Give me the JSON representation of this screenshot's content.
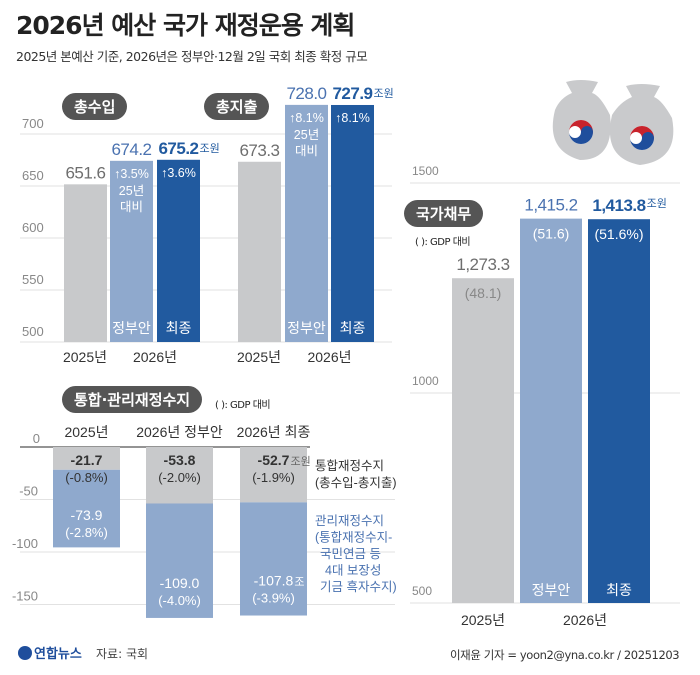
{
  "title": "2026년 예산 국가 재정운용 계획",
  "subtitle": "2025년 본예산 기준, 2026년은 정부안·12월 2일 국회 최종 확정 규모",
  "colors": {
    "y2025": "#c8c9cb",
    "proposal": "#8fa9cd",
    "final": "#215a9f",
    "gray_text": "#6e6e6e",
    "blue_text": "#4a72b0"
  },
  "unit": "조원",
  "unit_short": "조",
  "gdp_note": "( ): GDP 대비",
  "source": "자료: 국회",
  "logo": "연합뉴스",
  "credit": "이재윤 기자 = yoon2@yna.co.kr / 20251203",
  "chart_data": [
    {
      "type": "bar",
      "title": "총수입",
      "categories": [
        "2025년",
        "2026년 정부안",
        "2026년 최종"
      ],
      "values": [
        651.6,
        674.2,
        675.2
      ],
      "value_labels": [
        "651.6",
        "674.2",
        "675.2"
      ],
      "bar_labels": [
        "",
        "정부안",
        "최종"
      ],
      "growth": [
        "",
        "↑3.5%",
        "↑3.6%"
      ],
      "growth_note": [
        "25년",
        "대비"
      ],
      "x_groups": [
        "2025년",
        "2026년"
      ],
      "yticks": [
        500,
        550,
        600,
        650,
        700
      ],
      "ylim": [
        500,
        700
      ],
      "grid": true
    },
    {
      "type": "bar",
      "title": "총지출",
      "categories": [
        "2025년",
        "2026년 정부안",
        "2026년 최종"
      ],
      "values": [
        673.3,
        728.0,
        727.9
      ],
      "value_labels": [
        "673.3",
        "728.0",
        "727.9"
      ],
      "bar_labels": [
        "",
        "정부안",
        "최종"
      ],
      "growth": [
        "",
        "↑8.1%",
        "↑8.1%"
      ],
      "growth_note": [
        "25년",
        "대비"
      ],
      "x_groups": [
        "2025년",
        "2026년"
      ],
      "ylim": [
        500,
        700
      ],
      "grid": true
    },
    {
      "type": "bar",
      "title": "통합·관리재정수지",
      "stacked": true,
      "categories": [
        "2025년",
        "2026년 정부안",
        "2026년 최종"
      ],
      "series": [
        {
          "name": "통합재정수지 (총수입-총지출)",
          "values": [
            -21.7,
            -53.8,
            -52.7
          ],
          "labels": [
            "-21.7",
            "-53.8",
            "-52.7"
          ],
          "gdp": [
            "(-0.8%)",
            "(-2.0%)",
            "(-1.9%)"
          ]
        },
        {
          "name": "관리재정수지 (통합재정수지- 국민연금 등 4대 보장성 기금 흑자수지)",
          "values": [
            -73.9,
            -109.0,
            -107.8
          ],
          "labels": [
            "-73.9",
            "-109.0",
            "-107.8"
          ],
          "gdp": [
            "(-2.8%)",
            "(-4.0%)",
            "(-3.9%)"
          ]
        }
      ],
      "legend": [
        [
          "통합재정수지",
          "(총수입-총지출)"
        ],
        [
          "관리재정수지",
          "(통합재정수지-",
          "국민연금 등",
          "4대 보장성",
          "기금 흑자수지)"
        ]
      ],
      "yticks": [
        0,
        -50,
        -100,
        -150
      ],
      "grid": true
    },
    {
      "type": "bar",
      "title": "국가채무",
      "categories": [
        "2025년",
        "2026년 정부안",
        "2026년 최종"
      ],
      "values": [
        1273.3,
        1415.2,
        1413.8
      ],
      "value_labels": [
        "1,273.3",
        "1,415.2",
        "1,413.8"
      ],
      "gdp": [
        "(48.1)",
        "(51.6)",
        "(51.6%)"
      ],
      "bar_labels": [
        "",
        "정부안",
        "최종"
      ],
      "x_groups": [
        "2025년",
        "2026년"
      ],
      "yticks": [
        500,
        1000,
        1500
      ],
      "ylim": [
        500,
        1500
      ],
      "grid": true
    }
  ]
}
